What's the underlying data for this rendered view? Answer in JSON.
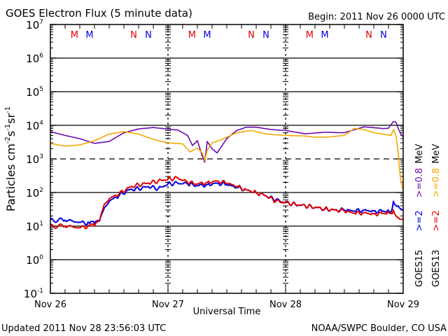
{
  "chart_data": {
    "type": "line",
    "title": "GOES Electron Flux (5 minute data)",
    "begin_label": "Begin: 2011 Nov 26 0000 UTC",
    "xlabel": "Universal Time",
    "ylabel": "Particles cm",
    "ylabel_parts": [
      "Particles cm",
      "-2",
      "s",
      "-1",
      "sr",
      "-1"
    ],
    "ylim_exp": [
      -1,
      7
    ],
    "y_ticks": [
      {
        "base": "10",
        "exp": "7"
      },
      {
        "base": "10",
        "exp": "6"
      },
      {
        "base": "10",
        "exp": "5"
      },
      {
        "base": "10",
        "exp": "4"
      },
      {
        "base": "10",
        "exp": "3"
      },
      {
        "base": "10",
        "exp": "2"
      },
      {
        "base": "10",
        "exp": "1"
      },
      {
        "base": "10",
        "exp": "0"
      },
      {
        "base": "10",
        "exp": "-1"
      }
    ],
    "x_ticks": [
      "Nov 26",
      "Nov 27",
      "Nov 28",
      "Nov 29"
    ],
    "xlim_hours": [
      0,
      72
    ],
    "threshold_line_exp": 3,
    "markers": [
      {
        "label": "M",
        "color": "#e00000",
        "hour": 4.9
      },
      {
        "label": "M",
        "color": "#0000e0",
        "hour": 8.0
      },
      {
        "label": "N",
        "color": "#e00000",
        "hour": 17.0
      },
      {
        "label": "N",
        "color": "#0000e0",
        "hour": 20.0
      },
      {
        "label": "M",
        "color": "#e00000",
        "hour": 28.9
      },
      {
        "label": "M",
        "color": "#0000e0",
        "hour": 32.0
      },
      {
        "label": "N",
        "color": "#e00000",
        "hour": 41.0
      },
      {
        "label": "N",
        "color": "#0000e0",
        "hour": 44.0
      },
      {
        "label": "M",
        "color": "#e00000",
        "hour": 52.9
      },
      {
        "label": "M",
        "color": "#0000e0",
        "hour": 56.0
      },
      {
        "label": "N",
        "color": "#e00000",
        "hour": 65.0
      },
      {
        "label": "N",
        "color": "#0000e0",
        "hour": 68.0
      }
    ],
    "legend_placement": "right",
    "series": [
      {
        "name": "GOES15 >=0.8 MeV",
        "color": "#6a0dad",
        "hours": [
          0,
          3,
          6,
          9,
          12,
          15,
          18,
          21,
          24,
          26,
          28,
          29,
          30,
          31,
          31.5,
          32,
          33,
          34,
          36,
          38,
          40,
          42,
          45,
          48,
          52,
          56,
          60,
          64,
          66,
          68,
          69,
          70,
          70.5,
          71,
          71.5,
          72
        ],
        "values": [
          6500,
          5000,
          4000,
          2900,
          3300,
          6000,
          7800,
          8600,
          7700,
          7200,
          5000,
          2500,
          3500,
          1200,
          800,
          3300,
          2000,
          1500,
          4000,
          7000,
          8800,
          8800,
          7500,
          7000,
          5600,
          6200,
          6000,
          9000,
          8500,
          8000,
          8200,
          13000,
          12500,
          8000,
          5500,
          4500
        ]
      },
      {
        "name": "GOES13 >=0.8 MeV",
        "color": "#f5a800",
        "hours": [
          0,
          3,
          6,
          9,
          12,
          15,
          18,
          21,
          24,
          27,
          28.5,
          30,
          31,
          31.5,
          32,
          33,
          35,
          38,
          41,
          44,
          48,
          52,
          54,
          56,
          60,
          62,
          64,
          66,
          68,
          69.5,
          70,
          70.5,
          71,
          71.3,
          71.6,
          72
        ],
        "values": [
          2900,
          2400,
          2600,
          3500,
          5500,
          6500,
          5500,
          3800,
          3000,
          2800,
          1600,
          2100,
          1500,
          900,
          1800,
          3000,
          3800,
          6000,
          7000,
          5500,
          5000,
          4800,
          4400,
          4400,
          5000,
          8000,
          7500,
          6000,
          5400,
          5000,
          7500,
          5000,
          1500,
          400,
          200,
          110
        ]
      },
      {
        "name": "GOES15 >=2 MeV",
        "color": "#0000e0",
        "hours": [
          0,
          3,
          6,
          8,
          9,
          10,
          11,
          12,
          14,
          16,
          18,
          20,
          22,
          24,
          26,
          28,
          30,
          32,
          34,
          36,
          38,
          40,
          42,
          44,
          46,
          48,
          50,
          52,
          54,
          56,
          58,
          60,
          62,
          64,
          66,
          68,
          69.5,
          70,
          71,
          72
        ],
        "values": [
          15,
          15,
          13,
          12,
          12,
          14,
          35,
          55,
          80,
          120,
          130,
          150,
          130,
          180,
          190,
          180,
          160,
          170,
          190,
          170,
          140,
          120,
          100,
          80,
          60,
          50,
          44,
          40,
          36,
          32,
          30,
          30,
          28,
          30,
          28,
          28,
          26,
          55,
          40,
          30
        ]
      },
      {
        "name": "GOES13 >=2 MeV",
        "color": "#e00000",
        "hours": [
          0,
          3,
          6,
          8,
          9,
          10,
          11,
          12,
          14,
          16,
          18,
          20,
          22,
          24,
          26,
          28,
          30,
          32,
          34,
          36,
          38,
          40,
          42,
          44,
          46,
          48,
          50,
          52,
          54,
          56,
          58,
          60,
          62,
          64,
          66,
          68,
          69.5,
          70,
          71,
          72
        ],
        "values": [
          10,
          10,
          9,
          10,
          10,
          14,
          45,
          65,
          90,
          140,
          170,
          190,
          220,
          250,
          270,
          200,
          180,
          200,
          220,
          190,
          150,
          120,
          100,
          80,
          55,
          50,
          45,
          40,
          36,
          33,
          30,
          28,
          24,
          25,
          23,
          24,
          24,
          30,
          18,
          16
        ]
      }
    ],
    "legend": [
      {
        "sat": "GOES15",
        "e2": ">=2",
        "e08": ">=0.8",
        "unit": "MeV",
        "color_e2": "#0000e0",
        "color_e08": "#6a0dad"
      },
      {
        "sat": "GOES13",
        "e2": ">=2",
        "e08": ">=0.8",
        "unit": "MeV",
        "color_e2": "#e00000",
        "color_e08": "#f5a800"
      }
    ]
  },
  "footer": {
    "updated": "Updated 2011 Nov 28 23:56:03 UTC",
    "credit": "NOAA/SWPC Boulder, CO USA"
  }
}
